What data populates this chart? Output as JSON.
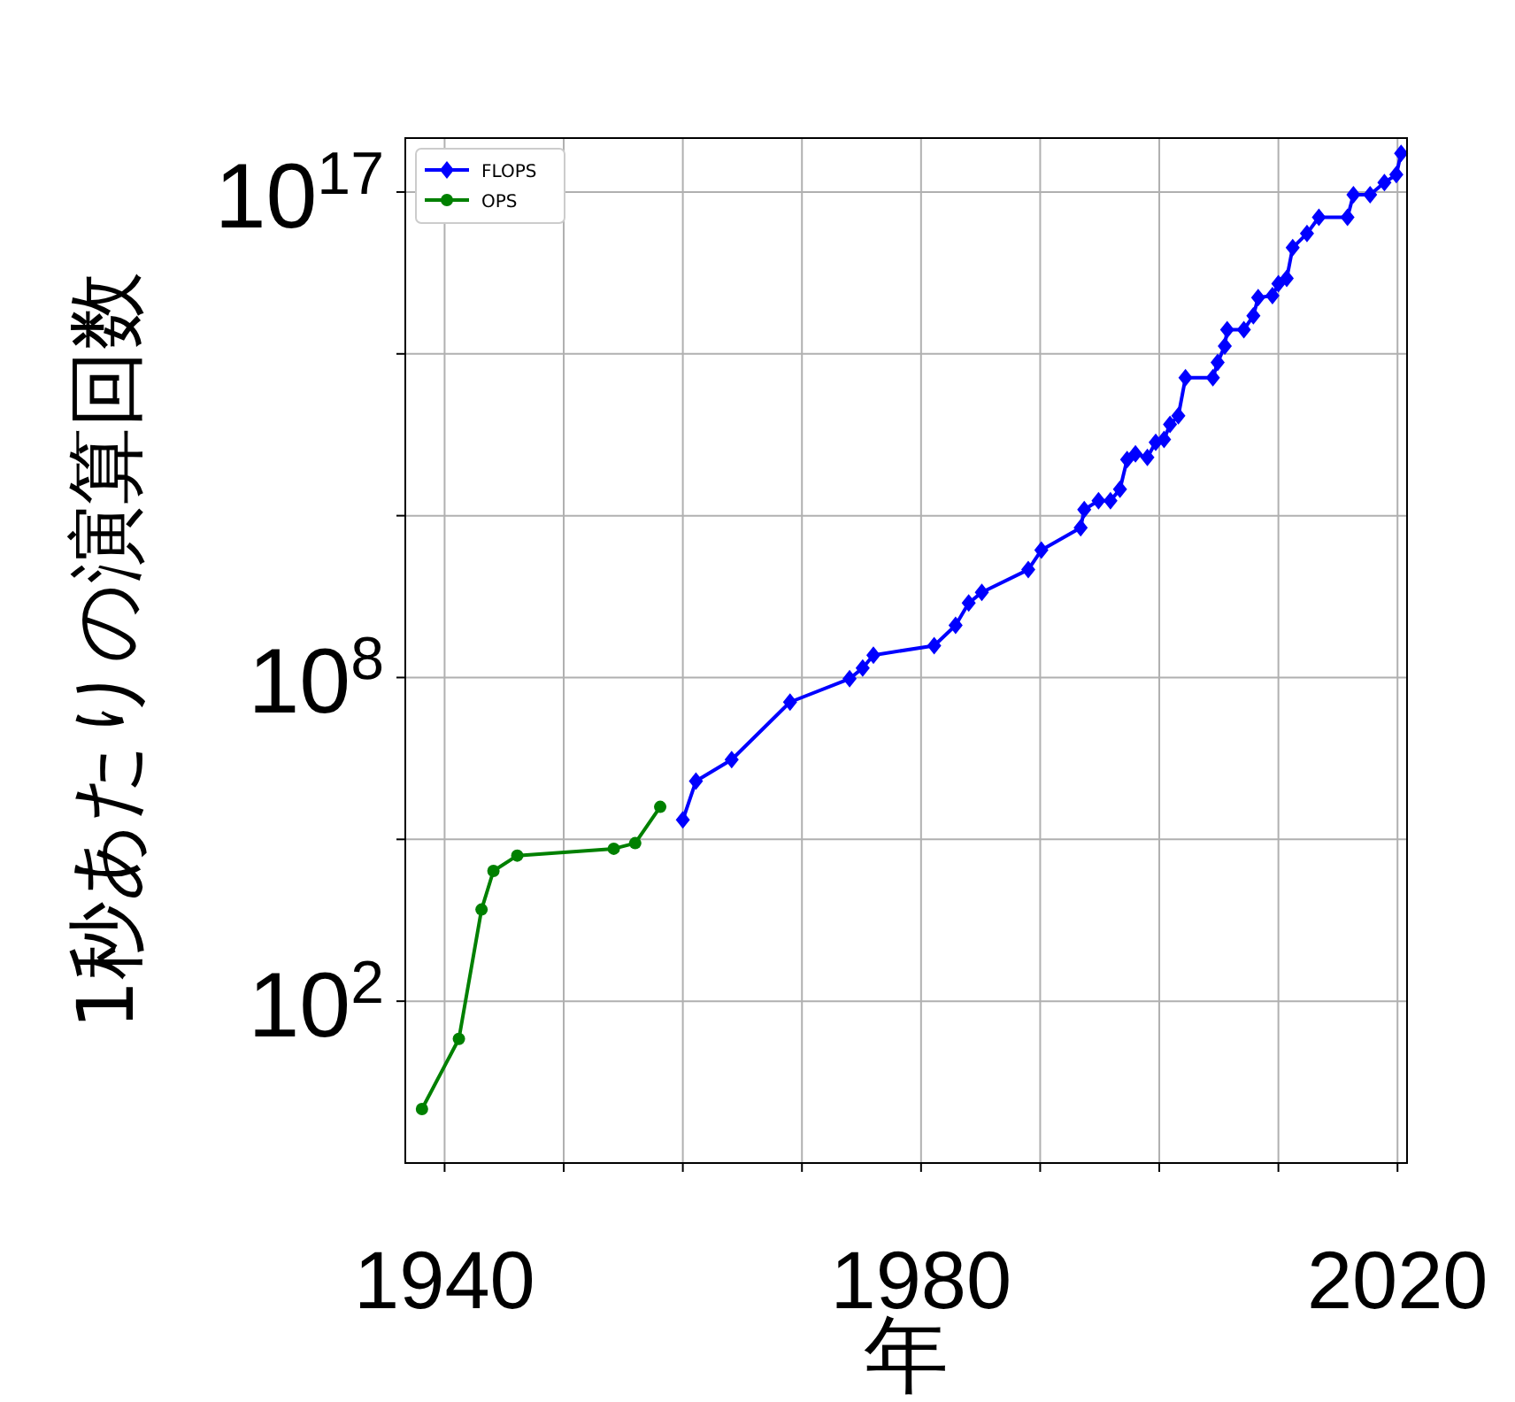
{
  "chart_data": {
    "type": "line",
    "xlabel": "年",
    "ylabel": "1秒あたりの演算回数",
    "log": "y",
    "grid": true,
    "legend": "top left",
    "xlim": [
      1936.7,
      2020.8
    ],
    "ylim": [
      0.1,
      1e+18
    ],
    "xticks": [
      1940,
      {
        "value": 1950,
        "label": null
      },
      {
        "value": 1960,
        "label": null
      },
      {
        "value": 1970,
        "label": null
      },
      1980,
      {
        "value": 1990,
        "label": null
      },
      {
        "value": 2000,
        "label": null
      },
      {
        "value": 2010,
        "label": null
      },
      2020
    ],
    "yticks": [
      {
        "value": 100,
        "label": "10$^{2}$"
      },
      {
        "value": 100000,
        "label": null
      },
      {
        "value": 100000000,
        "label": "10$^{8}$"
      },
      {
        "value": 100000000000,
        "label": null
      },
      {
        "value": 100000000000000,
        "label": null
      },
      {
        "value": 100000000000000000,
        "label": "10$^{17}$"
      }
    ],
    "series": [
      {
        "name": "FLOPS",
        "color": "#0000ff",
        "marker": "diamond",
        "x": [
          1960.0,
          1961.1,
          1964.1,
          1969.0,
          1974.0,
          1975.1,
          1976.0,
          1981.1,
          1982.9,
          1984.0,
          1985.1,
          1989.0,
          1990.1,
          1993.4,
          1993.7,
          1994.9,
          1995.9,
          1996.7,
          1997.3,
          1998.0,
          1999.0,
          1999.7,
          2000.4,
          2000.9,
          2001.6,
          2002.2,
          2004.5,
          2004.9,
          2005.5,
          2005.7,
          2007.1,
          2007.9,
          2008.3,
          2009.5,
          2010.0,
          2010.7,
          2011.2,
          2012.4,
          2013.4,
          2015.8,
          2016.3,
          2017.7,
          2018.9,
          2019.9,
          2020.3
        ],
        "values": [
          230000.0,
          1200000.0,
          3000000.0,
          35000000.0,
          95000000.0,
          150000000.0,
          260000000.0,
          390000000.0,
          930000000.0,
          2400000000.0,
          3800000000.0,
          10000000000.0,
          23000000000.0,
          60000000000.0,
          130000000000.0,
          190000000000.0,
          190000000000.0,
          310000000000.0,
          1100000000000.0,
          1400000000000.0,
          1200000000000.0,
          2300000000000.0,
          2600000000000.0,
          4900000000000.0,
          7100000000000.0,
          36000000000000.0,
          36000000000000.0,
          69000000000000.0,
          140000000000000.0,
          280000000000000.0,
          280000000000000.0,
          510000000000000.0,
          1100000000000000.0,
          1200000000000000.0,
          2000000000000000.0,
          2500000000000000.0,
          9300000000000000.0,
          1.7e+16,
          3.4e+16,
          3.4e+16,
          8.9e+16,
          8.9e+16,
          1.5e+17,
          2.1e+17,
          5.2e+17
        ]
      },
      {
        "name": "OPS",
        "color": "#008000",
        "marker": "circle",
        "x": [
          1938.1,
          1941.2,
          1943.1,
          1944.1,
          1946.1,
          1954.2,
          1956.0,
          1958.1
        ],
        "values": [
          1.0,
          20,
          5000,
          26000,
          50000,
          67000,
          85000,
          400000
        ]
      }
    ]
  }
}
